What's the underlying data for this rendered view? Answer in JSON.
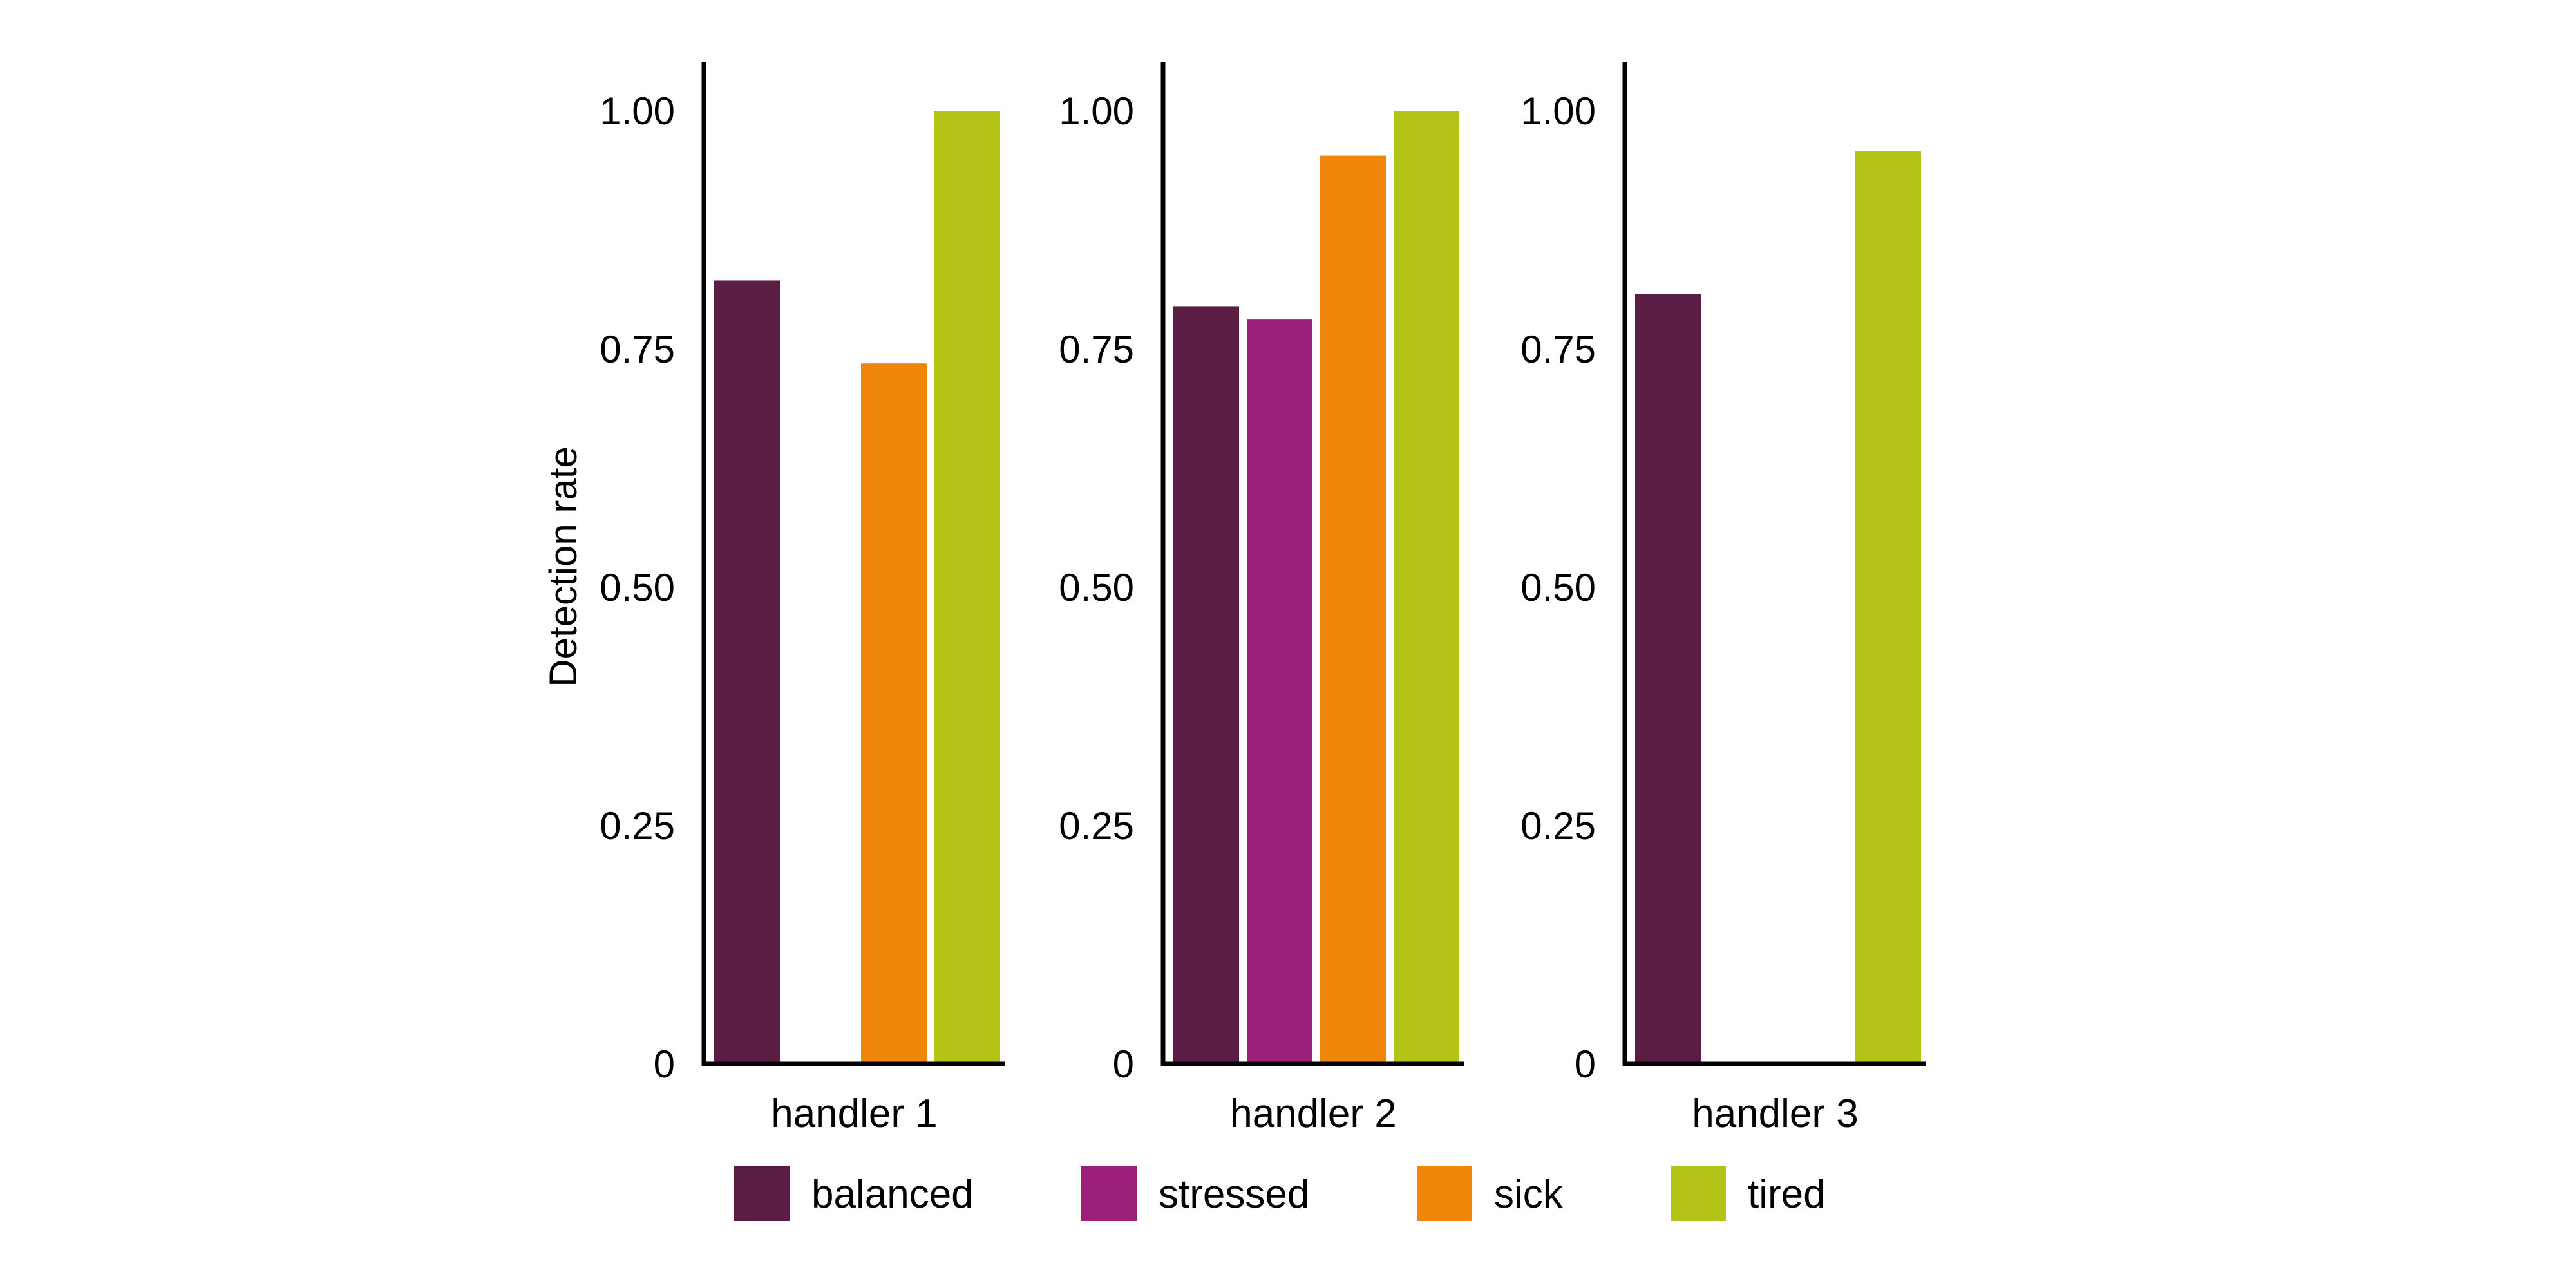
{
  "chart_data": {
    "type": "bar",
    "ylabel": "Detection rate",
    "ylim": [
      0,
      1.05
    ],
    "yticks": [
      0,
      0.25,
      0.5,
      0.75,
      1.0
    ],
    "ytick_labels": [
      "0",
      "0.25",
      "0.50",
      "0.75",
      "1.00"
    ],
    "categories": [
      "balanced",
      "stressed",
      "sick",
      "tired"
    ],
    "legend": {
      "placement": "bottom",
      "entries": [
        {
          "name": "balanced",
          "color": "#5a1e45"
        },
        {
          "name": "stressed",
          "color": "#9c1f7a"
        },
        {
          "name": "sick",
          "color": "#f0860a"
        },
        {
          "name": "tired",
          "color": "#b3c417"
        }
      ]
    },
    "panels": [
      {
        "facet": "handler 1",
        "values": [
          0.822,
          null,
          0.735,
          1.0
        ]
      },
      {
        "facet": "handler 2",
        "values": [
          0.795,
          0.781,
          0.953,
          1.0
        ]
      },
      {
        "facet": "handler 3",
        "values": [
          0.808,
          null,
          null,
          0.958
        ]
      }
    ],
    "grid": false
  }
}
